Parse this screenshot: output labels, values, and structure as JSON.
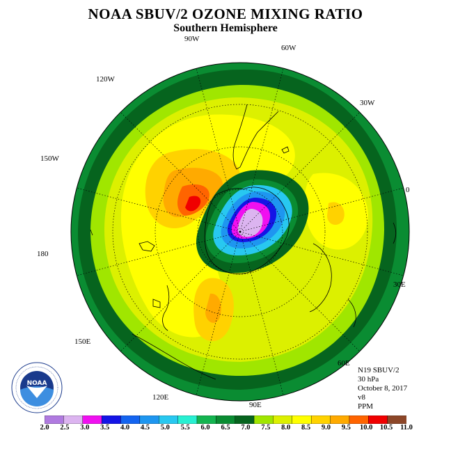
{
  "title": "NOAA SBUV/2 OZONE MIXING RATIO",
  "subtitle": "Southern Hemisphere",
  "longitude_labels": {
    "w90": "90W",
    "w60": "60W",
    "w30": "30W",
    "e0": "0",
    "e30": "30E",
    "e60": "60E",
    "e90": "90E",
    "e120": "120E",
    "e150": "150E",
    "e180": "180",
    "w150": "150W",
    "w120": "120W"
  },
  "info": {
    "instrument": "N19 SBUV/2",
    "level": "30 hPa",
    "date": "October 8, 2017",
    "version": "v8",
    "units": "PPM"
  },
  "logo": {
    "text": "NOAA",
    "ring_text": "NATIONAL OCEANIC AND ATMOSPHERIC ADMINISTRATION · U.S. DEPARTMENT OF COMMERCE"
  },
  "colorbar": {
    "labels": [
      "2.0",
      "2.5",
      "3.0",
      "3.5",
      "4.0",
      "4.5",
      "5.0",
      "5.5",
      "6.0",
      "6.5",
      "7.0",
      "7.5",
      "8.0",
      "8.5",
      "9.0",
      "9.5",
      "10.0",
      "10.5",
      "11.0"
    ],
    "colors": [
      "#b07ae0",
      "#dcb4f0",
      "#f010f0",
      "#1414e6",
      "#1464f0",
      "#1e96f0",
      "#28c8f0",
      "#28f0d2",
      "#14b450",
      "#0a8c32",
      "#06641e",
      "#a0e600",
      "#dcf000",
      "#ffff00",
      "#ffd200",
      "#ffaa00",
      "#ff6400",
      "#f00000",
      "#8c4628"
    ]
  }
}
